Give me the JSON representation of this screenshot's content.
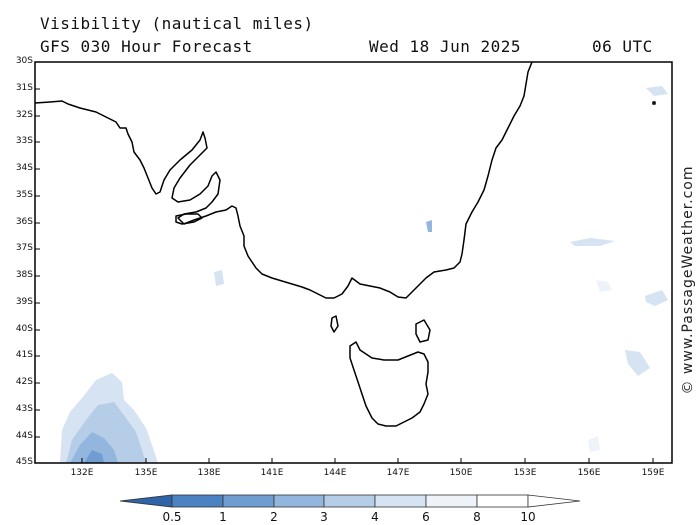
{
  "header": {
    "title": "Visibility (nautical miles)",
    "model": "GFS 030 Hour Forecast",
    "date": "Wed 18 Jun 2025",
    "time": "06 UTC"
  },
  "watermark": "© www.PassageWeather.com",
  "map": {
    "lat_labels": [
      "30S",
      "31S",
      "32S",
      "33S",
      "34S",
      "35S",
      "36S",
      "37S",
      "38S",
      "39S",
      "40S",
      "41S",
      "42S",
      "43S",
      "44S",
      "45S"
    ],
    "lon_labels": [
      "132E",
      "135E",
      "138E",
      "141E",
      "144E",
      "147E",
      "150E",
      "153E",
      "156E",
      "159E"
    ]
  },
  "legend": {
    "labels": [
      "0.5",
      "1",
      "2",
      "3",
      "4",
      "6",
      "8",
      "10"
    ],
    "colors": [
      "#2f65a8",
      "#4a82c2",
      "#6f9dd1",
      "#93b6de",
      "#b6cde8",
      "#d6e3f2",
      "#eef3fa",
      "#ffffff"
    ]
  }
}
